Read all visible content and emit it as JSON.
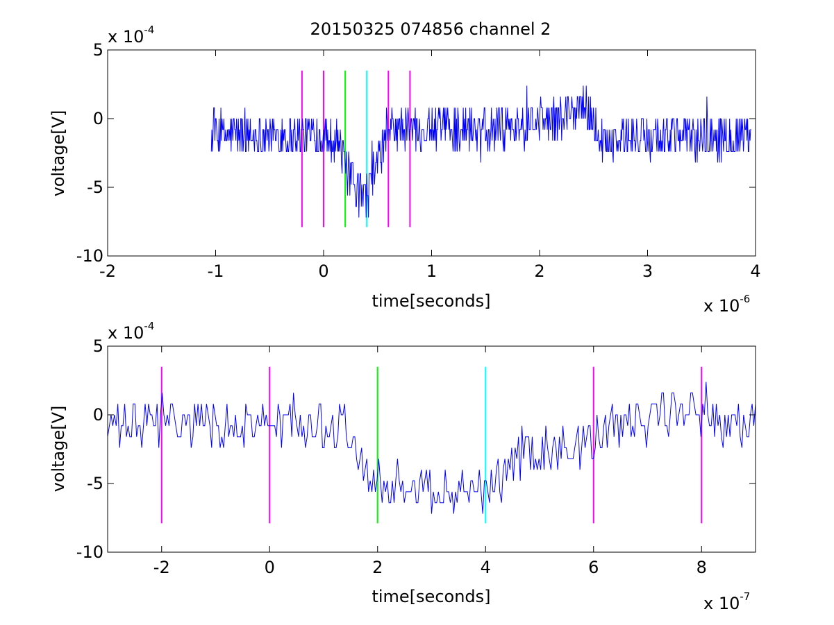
{
  "chart_data": [
    {
      "type": "line",
      "title": "20150325 074856 channel 2",
      "xlabel": "time[seconds]",
      "ylabel": "voltage[V]",
      "x_multiplier_label": "x 10",
      "x_multiplier_exp": "-6",
      "y_multiplier_label": "x 10",
      "y_multiplier_exp": "-4",
      "xlim": [
        -2,
        4
      ],
      "ylim": [
        -10,
        5
      ],
      "xticks": [
        "-2",
        "-1",
        "0",
        "1",
        "2",
        "3",
        "4"
      ],
      "yticks": [
        "-10",
        "-5",
        "0",
        "5"
      ],
      "signal_color": "#0000ff",
      "signal_x_range": [
        -1.04,
        3.96
      ],
      "signal_profile": [
        [
          -1.04,
          -1.2
        ],
        [
          -0.1,
          -1.2
        ],
        [
          0.12,
          -1.3
        ],
        [
          0.17,
          -2.5
        ],
        [
          0.22,
          -4.0
        ],
        [
          0.3,
          -5.0
        ],
        [
          0.36,
          -5.8
        ],
        [
          0.42,
          -5.5
        ],
        [
          0.48,
          -3.5
        ],
        [
          0.55,
          -2.0
        ],
        [
          0.62,
          -0.8
        ],
        [
          1.5,
          -0.6
        ],
        [
          2.1,
          -0.3
        ],
        [
          2.38,
          1.0
        ],
        [
          2.48,
          0.3
        ],
        [
          2.56,
          -1.4
        ],
        [
          3.96,
          -1.2
        ]
      ],
      "vertical_markers": [
        {
          "x": -0.2,
          "color": "#ff00ff",
          "ymin": -7.9,
          "ymax": 3.5
        },
        {
          "x": 0.0,
          "color": "#ff00ff",
          "ymin": -7.9,
          "ymax": 3.5
        },
        {
          "x": 0.2,
          "color": "#00ff00",
          "ymin": -7.9,
          "ymax": 3.5
        },
        {
          "x": 0.4,
          "color": "#00ffff",
          "ymin": -7.9,
          "ymax": 3.5
        },
        {
          "x": 0.6,
          "color": "#ff00ff",
          "ymin": -7.9,
          "ymax": 3.5
        },
        {
          "x": 0.8,
          "color": "#ff00ff",
          "ymin": -7.9,
          "ymax": 3.5
        }
      ]
    },
    {
      "type": "line",
      "xlabel": "time[seconds]",
      "ylabel": "voltage[V]",
      "x_multiplier_label": "x 10",
      "x_multiplier_exp": "-7",
      "y_multiplier_label": "x 10",
      "y_multiplier_exp": "-4",
      "xlim": [
        -3,
        9
      ],
      "ylim": [
        -10,
        5
      ],
      "xticks": [
        "-2",
        "0",
        "2",
        "4",
        "6",
        "8"
      ],
      "yticks": [
        "-10",
        "-5",
        "0",
        "5"
      ],
      "signal_color": "#0000ff",
      "signal_x_range": [
        -3,
        9
      ],
      "signal_profile": [
        [
          -3.0,
          -0.8
        ],
        [
          1.35,
          -0.6
        ],
        [
          1.55,
          -2.5
        ],
        [
          1.8,
          -3.8
        ],
        [
          2.1,
          -4.6
        ],
        [
          2.5,
          -5.2
        ],
        [
          3.0,
          -5.6
        ],
        [
          3.6,
          -5.6
        ],
        [
          4.0,
          -5.4
        ],
        [
          4.3,
          -4.8
        ],
        [
          4.6,
          -3.4
        ],
        [
          5.0,
          -2.3
        ],
        [
          5.6,
          -2.5
        ],
        [
          6.0,
          -2.0
        ],
        [
          6.4,
          -0.8
        ],
        [
          7.0,
          -0.5
        ],
        [
          7.6,
          0.4
        ],
        [
          8.2,
          -0.4
        ],
        [
          9.0,
          -0.8
        ]
      ],
      "vertical_markers": [
        {
          "x": -2.0,
          "color": "#ff00ff",
          "ymin": -7.9,
          "ymax": 3.5
        },
        {
          "x": 0.0,
          "color": "#ff00ff",
          "ymin": -7.9,
          "ymax": 3.5
        },
        {
          "x": 2.0,
          "color": "#00ff00",
          "ymin": -7.9,
          "ymax": 3.5
        },
        {
          "x": 4.0,
          "color": "#00ffff",
          "ymin": -7.9,
          "ymax": 3.5
        },
        {
          "x": 6.0,
          "color": "#ff00ff",
          "ymin": -7.9,
          "ymax": 3.5
        },
        {
          "x": 8.0,
          "color": "#ff00ff",
          "ymin": -7.9,
          "ymax": 3.5
        }
      ]
    }
  ]
}
